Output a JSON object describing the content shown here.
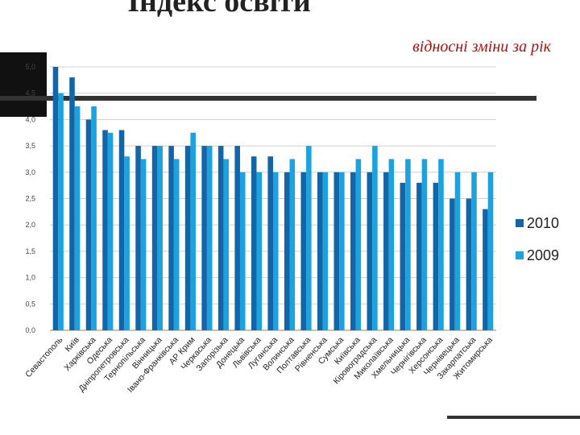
{
  "chart_data": {
    "type": "bar",
    "title": "Індекс освіти",
    "subtitle": "відносні зміни за рік",
    "categories": [
      "Севастополь",
      "Київ",
      "Харківська",
      "Одеська",
      "Дніпропетровська",
      "Тернопільська",
      "Вінницька",
      "Івано-Франківська",
      "АР Крим",
      "Черкаська",
      "Запорізька",
      "Донецька",
      "Львівська",
      "Луганська",
      "Волинська",
      "Полтавська",
      "Рівненська",
      "Сумська",
      "Київська",
      "Кіровоградська",
      "Миколаївська",
      "Хмельницька",
      "Чернігівська",
      "Херсонська",
      "Чернівецька",
      "Закарпатська",
      "Житомирська"
    ],
    "series": [
      {
        "name": "2010",
        "color": "#1266a8",
        "values": [
          5.0,
          4.8,
          4.0,
          3.8,
          3.8,
          3.5,
          3.5,
          3.5,
          3.5,
          3.5,
          3.5,
          3.5,
          3.3,
          3.3,
          3.0,
          3.0,
          3.0,
          3.0,
          3.0,
          3.0,
          3.0,
          2.8,
          2.8,
          2.8,
          2.5,
          2.5,
          2.3
        ]
      },
      {
        "name": "2009",
        "color": "#1ca3df",
        "values": [
          4.5,
          4.25,
          4.25,
          3.75,
          3.3,
          3.25,
          3.5,
          3.25,
          3.75,
          3.5,
          3.25,
          3.0,
          3.0,
          3.0,
          3.25,
          3.5,
          3.0,
          3.0,
          3.25,
          3.5,
          3.25,
          3.25,
          3.25,
          3.25,
          3.0,
          3.0,
          3.0
        ]
      }
    ],
    "ylim": [
      0,
      5
    ],
    "yticks": [
      {
        "value": 0,
        "label": "0,0"
      },
      {
        "value": 0.5,
        "label": "0,5"
      },
      {
        "value": 1,
        "label": "1,0"
      },
      {
        "value": 1.5,
        "label": "1,5"
      },
      {
        "value": 2,
        "label": "2,0"
      },
      {
        "value": 2.5,
        "label": "2,5"
      },
      {
        "value": 3,
        "label": "3,0"
      },
      {
        "value": 3.5,
        "label": "3,5"
      },
      {
        "value": 4,
        "label": "4,0"
      },
      {
        "value": 4.5,
        "label": "4,5"
      },
      {
        "value": 5,
        "label": "5,0"
      }
    ],
    "grid": true,
    "legend": "right"
  }
}
